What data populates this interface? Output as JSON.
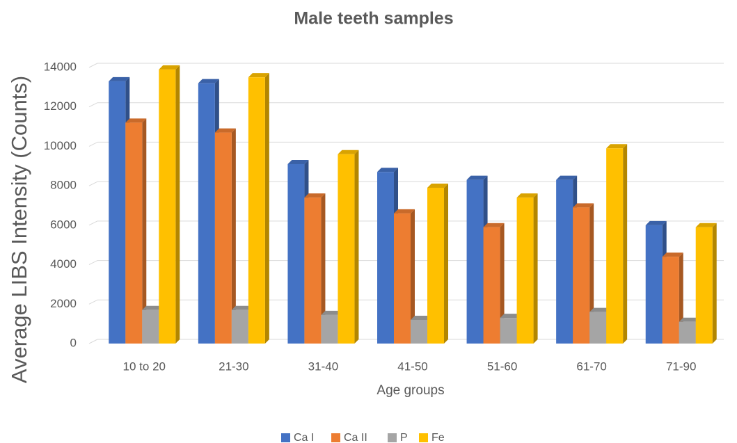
{
  "chart_data": {
    "type": "bar",
    "title": "Male teeth samples",
    "x_label": "Age groups",
    "y_label": "Average LIBS Intensity (Counts)",
    "categories": [
      "10 to 20",
      "21-30",
      "31-40",
      "41-50",
      "51-60",
      "61-70",
      "71-90"
    ],
    "series": [
      {
        "name": "Ca I",
        "color": "#4472c4",
        "values": [
          13300,
          13200,
          9100,
          8700,
          8300,
          8300,
          6000
        ]
      },
      {
        "name": "Ca II",
        "color": "#ed7d31",
        "values": [
          11200,
          10700,
          7400,
          6600,
          5900,
          6900,
          4400
        ]
      },
      {
        "name": "P",
        "color": "#a5a5a5",
        "values": [
          1700,
          1700,
          1450,
          1200,
          1300,
          1600,
          1100
        ]
      },
      {
        "name": "Fe",
        "color": "#ffc000",
        "values": [
          13900,
          13500,
          9600,
          7900,
          7400,
          9900,
          5900
        ]
      }
    ],
    "ylim": [
      0,
      14000
    ],
    "yticks": [
      0,
      2000,
      4000,
      6000,
      8000,
      10000,
      12000,
      14000
    ],
    "grid": true,
    "legend": "bottom"
  }
}
